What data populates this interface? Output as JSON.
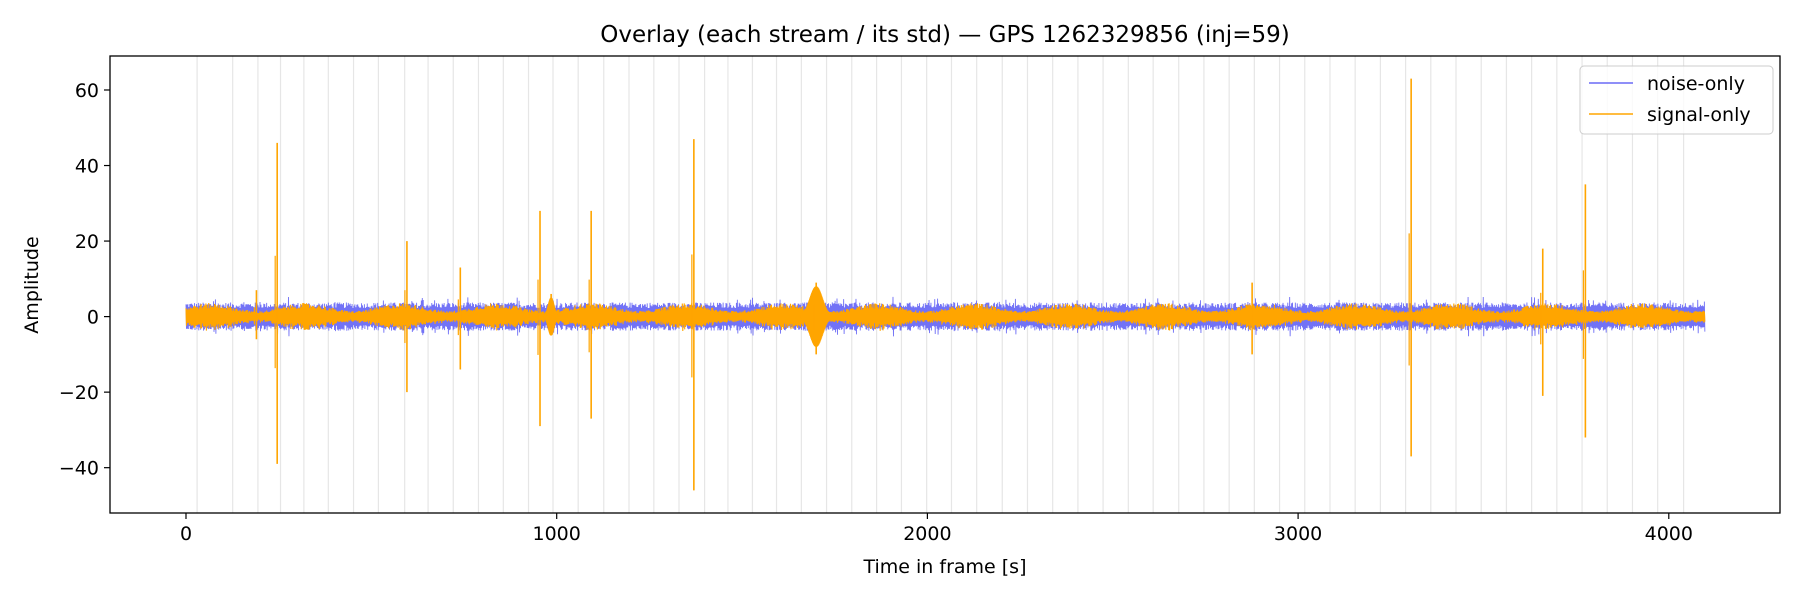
{
  "chart_data": {
    "type": "line",
    "title": "Overlay (each stream / its std) — GPS 1262329856 (inj=59)",
    "xlabel": "Time in frame [s]",
    "ylabel": "Amplitude",
    "xlim": [
      -205,
      4300
    ],
    "ylim": [
      -52,
      69
    ],
    "x_ticks": [
      0,
      1000,
      2000,
      3000,
      4000
    ],
    "x_tick_labels": [
      "0",
      "1000",
      "2000",
      "3000",
      "4000"
    ],
    "y_ticks": [
      -40,
      -20,
      0,
      20,
      40,
      60
    ],
    "y_tick_labels": [
      "−40",
      "−20",
      "0",
      "20",
      "40",
      "60"
    ],
    "legend": {
      "position": "top-right"
    },
    "x_range": [
      0,
      4096
    ],
    "background_vertical_lines_x": [
      30,
      126,
      194,
      255,
      318,
      384,
      452,
      519,
      590,
      653,
      721,
      789,
      856,
      924,
      990,
      1058,
      1127,
      1195,
      1262,
      1330,
      1399,
      1462,
      1528,
      1593,
      1660,
      1728,
      1796,
      1863,
      1930,
      1998,
      2065,
      2133,
      2202,
      2270,
      2338,
      2406,
      2474,
      2542,
      2609,
      2678,
      2746,
      2814,
      2882,
      2950,
      3018,
      3086,
      3154,
      3222,
      3290,
      3358,
      3426,
      3494,
      3562,
      3630,
      3698,
      3766,
      3834,
      3902,
      3970,
      4040
    ],
    "series": [
      {
        "name": "noise-only",
        "color": "#6a6af5",
        "baseline_amplitude": 3,
        "peak_amplitude": 4.2
      },
      {
        "name": "signal-only",
        "color": "#ffa500",
        "baseline_amplitude": 2.5,
        "events": [
          {
            "x": 190,
            "max": 7,
            "min": -6
          },
          {
            "x": 246,
            "max": 46,
            "min": -39
          },
          {
            "x": 596,
            "max": 20,
            "min": -20
          },
          {
            "x": 740,
            "max": 13,
            "min": -14
          },
          {
            "x": 955,
            "max": 28,
            "min": -29
          },
          {
            "x": 985,
            "max": 6,
            "min": -5
          },
          {
            "x": 1093,
            "max": 28,
            "min": -27
          },
          {
            "x": 1370,
            "max": 47,
            "min": -46
          },
          {
            "x": 1700,
            "max": 9,
            "min": -10
          },
          {
            "x": 2876,
            "max": 9,
            "min": -10
          },
          {
            "x": 3305,
            "max": 63,
            "min": -37
          },
          {
            "x": 3660,
            "max": 18,
            "min": -21
          },
          {
            "x": 3775,
            "max": 35,
            "min": -32
          }
        ]
      }
    ]
  }
}
